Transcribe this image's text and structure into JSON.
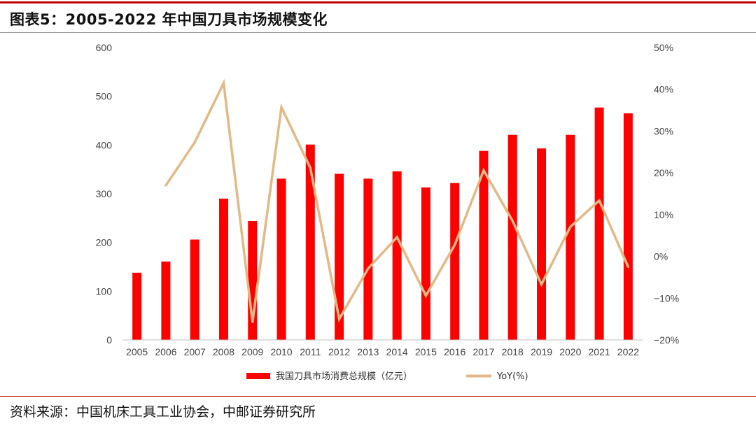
{
  "header": {
    "title": "图表5：2005-2022 年中国刀具市场规模变化"
  },
  "footer": {
    "source": "资料来源：中国机床工具工业协会，中邮证券研究所"
  },
  "colors": {
    "bar": "#ff0000",
    "line": "#e2b985",
    "accent": "#c00000"
  },
  "chart_data": {
    "type": "bar",
    "categories": [
      "2005",
      "2006",
      "2007",
      "2008",
      "2009",
      "2010",
      "2011",
      "2012",
      "2013",
      "2014",
      "2015",
      "2016",
      "2017",
      "2018",
      "2019",
      "2020",
      "2021",
      "2022"
    ],
    "series": [
      {
        "name": "我国刀具市场消费总规模（亿元）",
        "type": "bar",
        "axis": "left",
        "values": [
          138,
          161,
          206,
          290,
          244,
          331,
          401,
          341,
          331,
          346,
          313,
          322,
          388,
          421,
          393,
          421,
          477,
          465
        ]
      },
      {
        "name": "YoY(%)",
        "type": "line",
        "axis": "right",
        "values": [
          null,
          17.0,
          27.3,
          41.5,
          -15.7,
          35.7,
          21.2,
          -15.0,
          -2.9,
          4.6,
          -9.4,
          2.8,
          20.6,
          8.5,
          -6.7,
          7.1,
          13.4,
          -2.5
        ]
      }
    ],
    "y_left": {
      "min": 0,
      "max": 600,
      "ticks": [
        "0",
        "100",
        "200",
        "300",
        "400",
        "500",
        "600"
      ]
    },
    "y_right": {
      "min": -20,
      "max": 50,
      "ticks": [
        "-20%",
        "-10%",
        "0%",
        "10%",
        "20%",
        "30%",
        "40%",
        "50%"
      ]
    },
    "grid": false,
    "legend_position": "bottom"
  }
}
